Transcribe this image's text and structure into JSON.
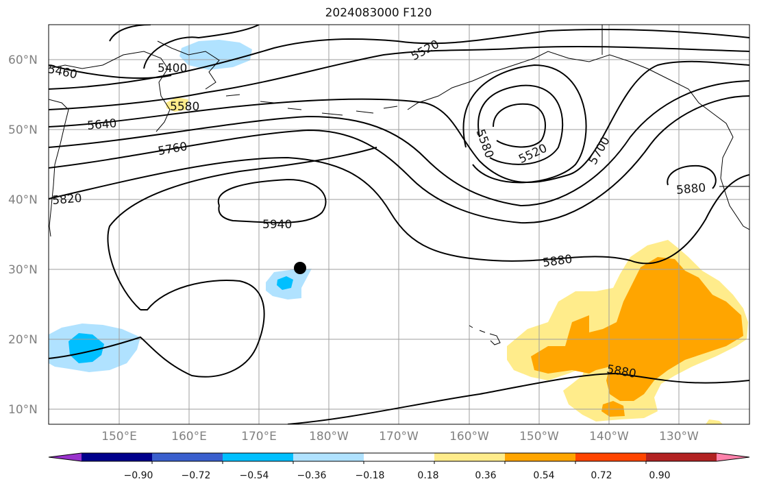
{
  "title": "2024083000 F120",
  "lat_labels": [
    "60°N",
    "50°N",
    "40°N",
    "30°N",
    "20°N",
    "10°N"
  ],
  "lon_labels": [
    "150°E",
    "160°E",
    "170°E",
    "180°W",
    "170°W",
    "160°W",
    "150°W",
    "140°W",
    "130°W"
  ],
  "contour_labels": [
    "5460",
    "5400",
    "5520",
    "5580",
    "5640",
    "5760",
    "5820",
    "5940",
    "5580",
    "5520",
    "5700",
    "5880",
    "5880",
    "5880"
  ],
  "colorbar": {
    "colors": [
      "#9932cc",
      "#00008b",
      "#3a5fcd",
      "#00bfff",
      "#b0e2ff",
      "#ffffff",
      "#ffec8b",
      "#ffa500",
      "#ff4500",
      "#b22222",
      "#ff82ab"
    ],
    "tick_labels": [
      "−0.90",
      "−0.72",
      "−0.54",
      "−0.36",
      "−0.18",
      "0.18",
      "0.36",
      "0.54",
      "0.72",
      "0.90"
    ]
  },
  "marker": {
    "label": "storm-position",
    "lat": 30.3,
    "lon": 176.2
  }
}
